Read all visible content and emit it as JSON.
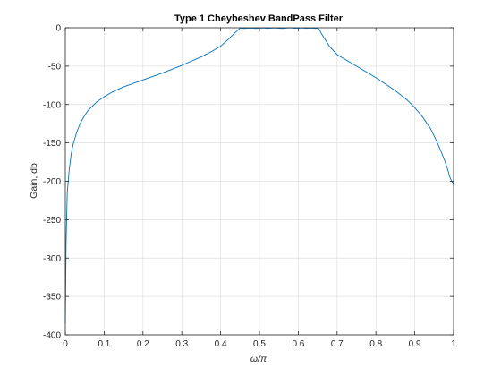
{
  "chart_data": {
    "type": "line",
    "title": "Type 1 Cheybeshev BandPass Filter",
    "xlabel": "ω/π",
    "ylabel": "Gain, db",
    "xlim": [
      0,
      1
    ],
    "ylim": [
      -400,
      0
    ],
    "xticks": [
      "0",
      "0.1",
      "0.2",
      "0.3",
      "0.4",
      "0.5",
      "0.6",
      "0.7",
      "0.8",
      "0.9",
      "1"
    ],
    "yticks": [
      "0",
      "-50",
      "-100",
      "-150",
      "-200",
      "-250",
      "-300",
      "-350",
      "-400"
    ],
    "grid": true,
    "series": [
      {
        "color": "#0072bd",
        "x": [
          0,
          0.002,
          0.005,
          0.01,
          0.015,
          0.02,
          0.03,
          0.04,
          0.05,
          0.06,
          0.08,
          0.1,
          0.12,
          0.15,
          0.2,
          0.25,
          0.3,
          0.35,
          0.38,
          0.4,
          0.42,
          0.43,
          0.44,
          0.445,
          0.45,
          0.455,
          0.46,
          0.47,
          0.48,
          0.49,
          0.5,
          0.51,
          0.52,
          0.53,
          0.54,
          0.55,
          0.56,
          0.57,
          0.58,
          0.59,
          0.6,
          0.61,
          0.62,
          0.63,
          0.64,
          0.645,
          0.65,
          0.655,
          0.66,
          0.67,
          0.68,
          0.7,
          0.75,
          0.8,
          0.85,
          0.88,
          0.9,
          0.92,
          0.94,
          0.95,
          0.96,
          0.97,
          0.98,
          0.985,
          0.99,
          0.995,
          1
        ],
        "y": [
          -385,
          -280,
          -215,
          -185,
          -165,
          -152,
          -135,
          -123,
          -114,
          -107,
          -97,
          -90,
          -84,
          -77,
          -68,
          -59,
          -49,
          -38,
          -30,
          -24,
          -15,
          -10,
          -5,
          -3,
          -0.5,
          -0.8,
          -1,
          -0.5,
          -0.3,
          -1,
          -0.4,
          -0.2,
          -0.8,
          -0.5,
          -0.2,
          -0.6,
          -0.9,
          -0.3,
          -0.1,
          -0.7,
          -0.5,
          -0.2,
          -0.8,
          -0.4,
          -0.6,
          -1,
          -0.5,
          -3,
          -8,
          -16,
          -24,
          -35,
          -50,
          -65,
          -82,
          -94,
          -104,
          -116,
          -131,
          -141,
          -152,
          -164,
          -177,
          -185,
          -194,
          -200,
          -203
        ]
      }
    ]
  }
}
